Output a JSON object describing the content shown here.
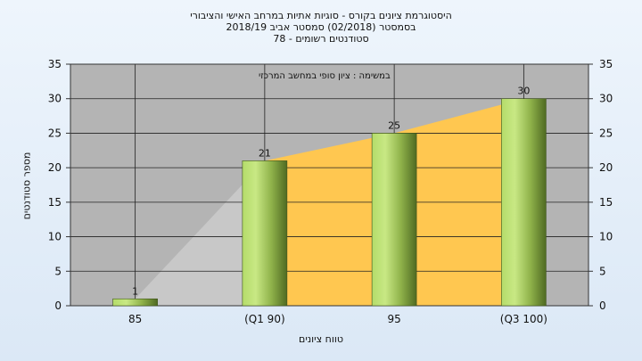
{
  "title_lines": [
    "היסטוגרמת ציונים בקורס - סוגיות אתיות במרחב האישי והציבורי",
    "בסמסטר  (02/2018)  סמסטר אביב 2018/19",
    "סטודנטים רשומים - 78"
  ],
  "chart_data": {
    "type": "bar",
    "title": "היסטוגרמת ציונים בקורס - סוגיות אתיות במרחב האישי והציבורי",
    "subtitle": "בסמסטר  (02/2018)  סמסטר אביב 2018/19 | סטודנטים רשומים - 78",
    "annotation": "במשימה : ציון סופי במחשב המרכזי",
    "xlabel": "טווח ציונים",
    "ylabel": "מספר סטודנטים",
    "categories": [
      "85",
      "(Q1 90)",
      "95",
      "(Q3 100)"
    ],
    "values": [
      1,
      21,
      25,
      30
    ],
    "ylim": [
      0,
      35
    ],
    "yticks": [
      0,
      5,
      10,
      15,
      20,
      25,
      30,
      35
    ],
    "grid": true,
    "secondary_y_axis": true,
    "colors": {
      "plot_background": "#b4b4b4",
      "area_fill": "#ffc750",
      "light_area": "#c8c8c8",
      "bar_light": "#c8e884",
      "bar_dark": "#4f6a22"
    }
  }
}
